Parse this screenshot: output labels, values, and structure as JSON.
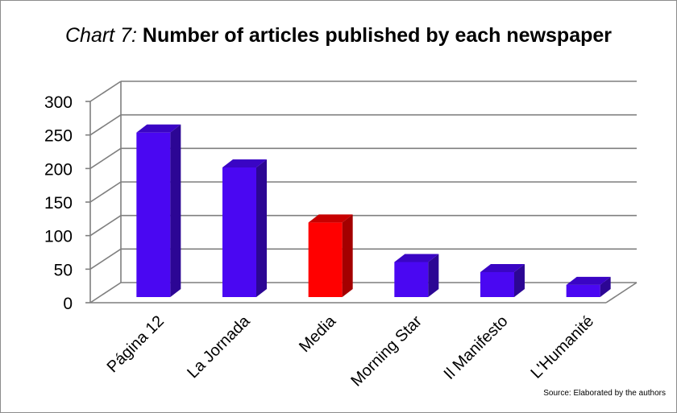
{
  "chart_data": {
    "type": "bar",
    "title_prefix": "Chart 7:",
    "title": "Number of articles published by each newspaper",
    "categories": [
      "Página 12",
      "La Jornada",
      "Media",
      "Morning Star",
      "Il Manifesto",
      "L'Humanité"
    ],
    "values": [
      250,
      198,
      116,
      57,
      42,
      23
    ],
    "ylim": [
      0,
      300
    ],
    "yticks": [
      "0",
      "50",
      "100",
      "150",
      "200",
      "250",
      "300"
    ],
    "xlabel": "",
    "ylabel": "",
    "grid": true,
    "style": "3d-column",
    "colors": [
      "#4a07f2",
      "#4a07f2",
      "#ff0000",
      "#4a07f2",
      "#4a07f2",
      "#4a07f2"
    ],
    "side_colors": [
      "#2c0694",
      "#2c0694",
      "#a30000",
      "#2c0694",
      "#2c0694",
      "#2c0694"
    ],
    "top_colors": [
      "#3a05c4",
      "#3a05c4",
      "#c80000",
      "#3a05c4",
      "#3a05c4",
      "#3a05c4"
    ]
  },
  "source": "Source: Elaborated by the authors"
}
